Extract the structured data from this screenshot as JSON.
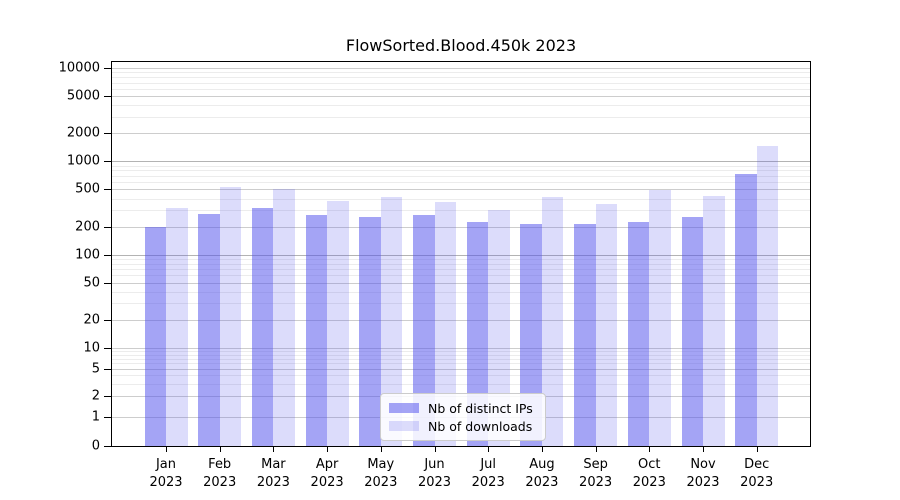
{
  "chart_data": {
    "type": "bar",
    "title": "FlowSorted.Blood.450k 2023",
    "categories": [
      "Jan",
      "Feb",
      "Mar",
      "Apr",
      "May",
      "Jun",
      "Jul",
      "Aug",
      "Sep",
      "Oct",
      "Nov",
      "Dec"
    ],
    "year_label": "2023",
    "series": [
      {
        "name": "Nb of distinct IPs",
        "color": "rgba(80,80,235,0.52)",
        "values": [
          200,
          270,
          318,
          265,
          251,
          267,
          222,
          213,
          213,
          222,
          254,
          726
        ]
      },
      {
        "name": "Nb of downloads",
        "color": "rgba(80,80,235,0.20)",
        "values": [
          315,
          528,
          507,
          379,
          411,
          364,
          299,
          420,
          351,
          490,
          429,
          1459
        ]
      }
    ],
    "xlabel": "",
    "ylabel": "",
    "yscale": "symlog",
    "ylim": [
      0,
      11600
    ],
    "y_ticks": [
      0,
      1,
      2,
      5,
      10,
      20,
      50,
      100,
      200,
      500,
      1000,
      2000,
      5000,
      10000
    ],
    "y_minor_ticks": [
      3,
      4,
      6,
      7,
      8,
      9,
      30,
      40,
      60,
      70,
      80,
      90,
      300,
      400,
      600,
      700,
      800,
      900,
      3000,
      4000,
      6000,
      7000,
      8000,
      9000
    ],
    "grid": true,
    "emphasized_gridlines": [
      100,
      1000
    ],
    "legend_position": "lower center",
    "colors": {
      "bar_distinct_ips": "rgba(80,80,235,0.52)",
      "bar_downloads": "rgba(80,80,235,0.20)",
      "grid_major": "#cdcdcd",
      "grid_minor": "#ececec",
      "grid_emphasized": "#b3b3b3"
    }
  }
}
